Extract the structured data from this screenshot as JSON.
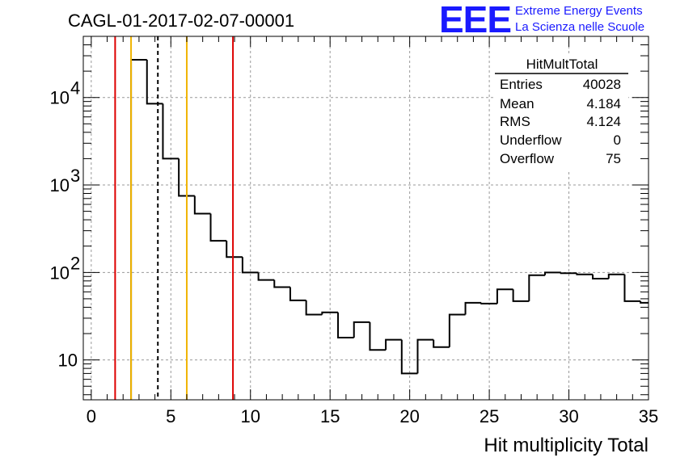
{
  "title": "CAGL-01-2017-02-07-00001",
  "logo": {
    "mark": "EEE",
    "line1": "Extreme Energy Events",
    "line2": "La Scienza nelle Scuole",
    "color": "#1a1aff"
  },
  "stats": {
    "name": "HitMultTotal",
    "rows": [
      {
        "label": "Entries",
        "value": "40028"
      },
      {
        "label": "Mean",
        "value": "4.184"
      },
      {
        "label": "RMS",
        "value": "4.124"
      },
      {
        "label": "Underflow",
        "value": "0"
      },
      {
        "label": "Overflow",
        "value": "75"
      }
    ]
  },
  "chart_data": {
    "type": "bar",
    "histogram": "step",
    "xlabel": "Hit multiplicity Total",
    "xlim": [
      -0.5,
      35
    ],
    "ylim": [
      3.5,
      50000
    ],
    "yscale": "log",
    "grid": true,
    "x_ticks": [
      0,
      5,
      10,
      15,
      20,
      25,
      30,
      35
    ],
    "x_tick_labels": [
      "0",
      "5",
      "10",
      "15",
      "20",
      "25",
      "30",
      "35"
    ],
    "y_ticks": [
      10,
      100,
      1000,
      10000
    ],
    "y_tick_labels": [
      "10",
      "10",
      "10",
      "10"
    ],
    "y_tick_exponents": [
      "",
      "2",
      "3",
      "4"
    ],
    "bin_width": 1,
    "bin_low_edges": [
      2.5,
      3.5,
      4.5,
      5.5,
      6.5,
      7.5,
      8.5,
      9.5,
      10.5,
      11.5,
      12.5,
      13.5,
      14.5,
      15.5,
      16.5,
      17.5,
      18.5,
      19.5,
      20.5,
      21.5,
      22.5,
      23.5,
      24.5,
      25.5,
      26.5,
      27.5,
      28.5,
      29.5,
      30.5,
      31.5,
      32.5,
      33.5,
      34.5
    ],
    "values": [
      27000,
      8500,
      2000,
      750,
      470,
      230,
      150,
      100,
      82,
      68,
      48,
      33,
      35,
      18,
      27,
      13,
      17,
      7,
      17,
      14,
      33,
      45,
      44,
      64,
      47,
      93,
      100,
      98,
      95,
      85,
      95,
      47,
      45
    ],
    "vertical_lines": [
      {
        "x": 1.5,
        "color": "#dd0000",
        "style": "solid"
      },
      {
        "x": 2.5,
        "color": "#f0b400",
        "style": "solid"
      },
      {
        "x": 4.184,
        "color": "#000000",
        "style": "dashed"
      },
      {
        "x": 6.0,
        "color": "#f0b400",
        "style": "solid"
      },
      {
        "x": 8.9,
        "color": "#dd0000",
        "style": "solid"
      }
    ]
  }
}
